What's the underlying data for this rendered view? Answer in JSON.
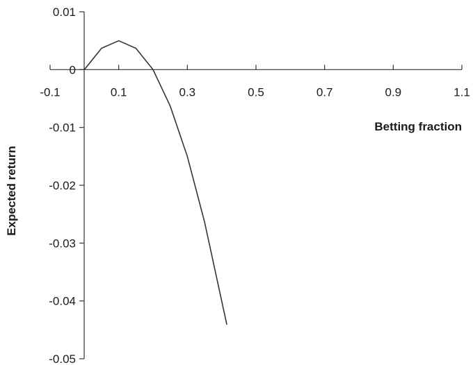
{
  "chart_data": {
    "type": "line",
    "xlabel": "Betting fraction",
    "ylabel": "Expected return",
    "xlim": [
      -0.1,
      1.1
    ],
    "ylim": [
      -0.05,
      0.01
    ],
    "x_ticks": [
      -0.1,
      0.1,
      0.3,
      0.5,
      0.7,
      0.9,
      1.1
    ],
    "x_tick_labels": [
      "-0.1",
      "0.1",
      "0.3",
      "0.5",
      "0.7",
      "0.9",
      "1.1"
    ],
    "y_ticks": [
      0.01,
      0,
      -0.01,
      -0.02,
      -0.03,
      -0.04,
      -0.05
    ],
    "y_tick_labels": [
      "0.01",
      "0",
      "-0.01",
      "-0.02",
      "-0.03",
      "-0.04",
      "-0.05"
    ],
    "grid": false,
    "series": [
      {
        "color": "#333333",
        "x": [
          0,
          0.05,
          0.1,
          0.15,
          0.2,
          0.25,
          0.3,
          0.35,
          0.4,
          0.415
        ],
        "y": [
          0,
          0.0037,
          0.005,
          0.0037,
          0,
          -0.0063,
          -0.015,
          -0.0263,
          -0.04,
          -0.0441
        ]
      }
    ]
  }
}
